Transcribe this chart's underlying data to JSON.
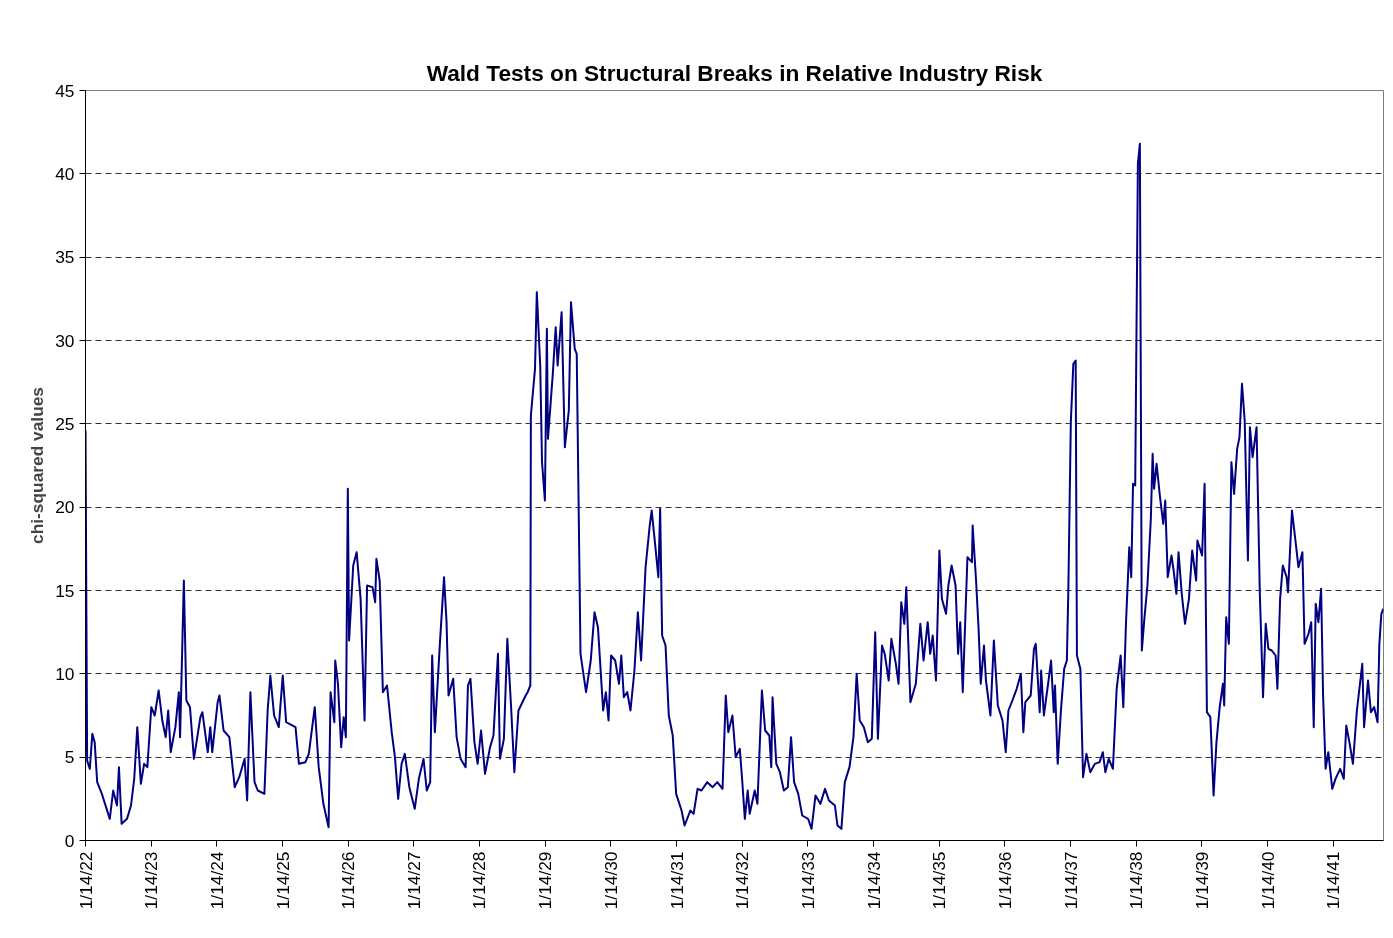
{
  "chart_data": {
    "type": "line",
    "title": "Wald Tests on Structural Breaks in Relative Industry Risk",
    "ylabel": "chi-squared values",
    "x": [
      "1922-01-14",
      "1922-01-23",
      "1922-02-07",
      "1922-02-21",
      "1922-03-06",
      "1922-03-20",
      "1922-04-15",
      "1922-05-29",
      "1922-06-17",
      "1922-07-08",
      "1922-07-19",
      "1922-08-03",
      "1922-09-02",
      "1922-09-24",
      "1922-10-12",
      "1922-10-29",
      "1922-11-18",
      "1922-12-06",
      "1922-12-24",
      "1923-01-15",
      "1923-02-03",
      "1923-02-25",
      "1923-03-17",
      "1923-04-05",
      "1923-04-19",
      "1923-05-03",
      "1923-05-29",
      "1923-06-17",
      "1923-06-24",
      "1923-07-15",
      "1923-07-29",
      "1923-08-18",
      "1923-09-09",
      "1923-10-15",
      "1923-10-26",
      "1923-11-25",
      "1923-12-09",
      "1923-12-20",
      "1924-01-19",
      "1924-01-29",
      "1924-02-21",
      "1924-03-24",
      "1924-04-23",
      "1924-05-18",
      "1924-06-17",
      "1924-07-01",
      "1924-07-19",
      "1924-08-11",
      "1924-08-29",
      "1924-10-05",
      "1924-10-23",
      "1924-11-07",
      "1924-11-28",
      "1924-12-24",
      "1925-01-15",
      "1925-02-03",
      "1925-03-27",
      "1925-04-15",
      "1925-05-21",
      "1925-06-09",
      "1925-07-12",
      "1925-08-03",
      "1925-08-29",
      "1925-09-27",
      "1925-10-08",
      "1925-10-29",
      "1925-11-03",
      "1925-11-18",
      "1925-12-06",
      "1925-12-20",
      "1926-01-01",
      "1926-01-12",
      "1926-01-19",
      "1926-02-11",
      "1926-03-02",
      "1926-03-24",
      "1926-04-15",
      "1926-04-29",
      "1926-05-29",
      "1926-06-13",
      "1926-06-20",
      "1926-07-08",
      "1926-07-26",
      "1926-08-18",
      "1926-09-13",
      "1926-10-01",
      "1926-10-19",
      "1926-11-07",
      "1926-11-25",
      "1926-12-20",
      "1927-01-19",
      "1927-02-11",
      "1927-03-09",
      "1927-03-27",
      "1927-04-15",
      "1927-04-26",
      "1927-05-11",
      "1927-06-09",
      "1927-07-01",
      "1927-07-15",
      "1927-07-26",
      "1927-08-21",
      "1927-09-09",
      "1927-10-01",
      "1927-10-29",
      "1927-11-11",
      "1927-11-25",
      "1927-12-17",
      "1928-01-04",
      "1928-01-23",
      "1928-02-14",
      "1928-03-13",
      "1928-04-01",
      "1928-04-26",
      "1928-05-07",
      "1928-05-29",
      "1928-06-17",
      "1928-07-08",
      "1928-07-26",
      "1928-08-18",
      "1928-09-27",
      "1928-10-08",
      "1928-10-23",
      "1928-10-26",
      "1928-11-18",
      "1928-11-28",
      "1928-12-17",
      "1928-12-27",
      "1929-01-12",
      "1929-01-23",
      "1929-01-29",
      "1929-02-25",
      "1929-03-13",
      "1929-03-24",
      "1929-04-15",
      "1929-05-03",
      "1929-05-25",
      "1929-06-06",
      "1929-06-27",
      "1929-07-08",
      "1929-07-29",
      "1929-08-29",
      "1929-09-24",
      "1929-10-15",
      "1929-11-03",
      "1929-12-02",
      "1929-12-17",
      "1930-01-01",
      "1930-01-15",
      "1930-02-07",
      "1930-02-28",
      "1930-03-13",
      "1930-03-27",
      "1930-04-15",
      "1930-05-03",
      "1930-05-25",
      "1930-06-13",
      "1930-07-01",
      "1930-07-26",
      "1930-08-18",
      "1930-08-29",
      "1930-09-13",
      "1930-10-05",
      "1930-10-15",
      "1930-10-26",
      "1930-11-14",
      "1930-12-02",
      "1930-12-24",
      "1931-01-12",
      "1931-02-11",
      "1931-02-28",
      "1931-04-01",
      "1931-04-19",
      "1931-05-11",
      "1931-06-02",
      "1931-07-04",
      "1931-08-03",
      "1931-08-29",
      "1931-09-27",
      "1931-10-15",
      "1931-10-29",
      "1931-11-21",
      "1931-12-09",
      "1932-01-01",
      "1932-01-15",
      "1932-01-29",
      "1932-02-14",
      "1932-02-25",
      "1932-03-24",
      "1932-04-08",
      "1932-05-03",
      "1932-05-21",
      "1932-06-13",
      "1932-06-24",
      "1932-07-01",
      "1932-07-22",
      "1932-08-11",
      "1932-09-02",
      "1932-09-24",
      "1932-10-12",
      "1932-10-29",
      "1932-11-21",
      "1932-12-13",
      "1933-01-15",
      "1933-02-03",
      "1933-02-25",
      "1933-03-24",
      "1933-04-19",
      "1933-05-11",
      "1933-06-13",
      "1933-06-27",
      "1933-07-19",
      "1933-08-07",
      "1933-09-02",
      "1933-09-24",
      "1933-10-12",
      "1933-10-29",
      "1933-11-21",
      "1933-12-13",
      "1934-01-04",
      "1934-01-23",
      "1934-02-07",
      "1934-03-02",
      "1934-03-17",
      "1934-04-08",
      "1934-04-23",
      "1934-05-18",
      "1934-06-02",
      "1934-06-17",
      "1934-07-04",
      "1934-07-15",
      "1934-08-07",
      "1934-09-06",
      "1934-10-01",
      "1934-10-19",
      "1934-11-11",
      "1934-11-25",
      "1934-12-09",
      "1934-12-27",
      "1935-01-15",
      "1935-01-29",
      "1935-02-21",
      "1935-03-06",
      "1935-03-24",
      "1935-04-15",
      "1935-04-29",
      "1935-05-11",
      "1935-05-25",
      "1935-06-20",
      "1935-07-15",
      "1935-07-19",
      "1935-08-07",
      "1935-08-21",
      "1935-09-02",
      "1935-09-20",
      "1935-10-01",
      "1935-10-26",
      "1935-11-14",
      "1935-12-06",
      "1936-01-01",
      "1936-01-19",
      "1936-02-03",
      "1936-02-25",
      "1936-03-20",
      "1936-04-12",
      "1936-04-26",
      "1936-05-07",
      "1936-06-06",
      "1936-06-24",
      "1936-07-04",
      "1936-07-26",
      "1936-08-03",
      "1936-08-18",
      "1936-09-13",
      "1936-09-27",
      "1936-10-12",
      "1936-10-19",
      "1936-11-03",
      "1936-11-21",
      "1936-12-09",
      "1936-12-24",
      "1937-01-01",
      "1937-01-15",
      "1937-01-29",
      "1937-02-11",
      "1937-02-18",
      "1937-03-09",
      "1937-03-24",
      "1937-04-12",
      "1937-05-03",
      "1937-05-29",
      "1937-06-24",
      "1937-07-12",
      "1937-07-26",
      "1937-08-14",
      "1937-09-06",
      "1937-09-27",
      "1937-10-19",
      "1937-11-03",
      "1937-11-18",
      "1937-12-06",
      "1937-12-17",
      "1937-12-27",
      "1938-01-08",
      "1938-01-23",
      "1938-02-03",
      "1938-02-14",
      "1938-02-28",
      "1938-03-17",
      "1938-04-05",
      "1938-04-15",
      "1938-04-23",
      "1938-05-07",
      "1938-05-25",
      "1938-06-13",
      "1938-06-24",
      "1938-07-08",
      "1938-07-29",
      "1938-08-11",
      "1938-08-25",
      "1938-09-06",
      "1938-09-24",
      "1938-10-12",
      "1938-11-03",
      "1938-11-21",
      "1938-12-13",
      "1938-12-20",
      "1939-01-15",
      "1939-01-29",
      "1939-02-11",
      "1939-03-02",
      "1939-03-20",
      "1939-04-05",
      "1939-04-23",
      "1939-05-11",
      "1939-05-18",
      "1939-05-29",
      "1939-06-13",
      "1939-06-27",
      "1939-07-12",
      "1939-07-29",
      "1939-08-11",
      "1939-08-25",
      "1939-09-09",
      "1939-09-27",
      "1939-10-08",
      "1939-10-23",
      "1939-11-14",
      "1939-12-02",
      "1939-12-20",
      "1940-01-04",
      "1940-01-19",
      "1940-02-07",
      "1940-02-28",
      "1940-03-09",
      "1940-03-24",
      "1940-04-08",
      "1940-04-29",
      "1940-05-07",
      "1940-05-29",
      "1940-06-13",
      "1940-07-04",
      "1940-07-26",
      "1940-08-07",
      "1940-08-29",
      "1940-09-13",
      "1940-09-27",
      "1940-10-08",
      "1940-10-23",
      "1940-11-07",
      "1940-11-18",
      "1940-12-02",
      "1940-12-17",
      "1941-01-08",
      "1941-01-26",
      "1941-02-21",
      "1941-03-13",
      "1941-03-27",
      "1941-04-15",
      "1941-05-03",
      "1941-05-25",
      "1941-06-24",
      "1941-07-04",
      "1941-07-26",
      "1941-08-11",
      "1941-08-29",
      "1941-09-17",
      "1941-09-27",
      "1941-10-08",
      "1941-10-19"
    ],
    "series": [
      {
        "color": "#000080",
        "values": [
          24.6,
          4.8,
          4.3,
          6.4,
          5.9,
          3.5,
          2.8,
          1.3,
          3.0,
          2.1,
          4.4,
          1.0,
          1.3,
          2.1,
          3.7,
          6.8,
          3.4,
          4.6,
          4.4,
          8.0,
          7.5,
          9.0,
          7.2,
          6.2,
          7.8,
          5.3,
          6.8,
          8.9,
          6.2,
          15.6,
          8.4,
          8.0,
          4.9,
          7.4,
          7.7,
          5.3,
          6.8,
          5.3,
          8.3,
          8.7,
          6.6,
          6.2,
          3.2,
          3.8,
          4.9,
          2.4,
          8.9,
          3.5,
          3.0,
          2.8,
          7.8,
          9.9,
          7.5,
          6.8,
          9.9,
          7.1,
          6.8,
          4.6,
          4.7,
          5.2,
          8.0,
          4.4,
          2.2,
          0.8,
          8.9,
          7.1,
          10.8,
          9.4,
          5.6,
          7.4,
          6.2,
          21.1,
          12.0,
          16.5,
          17.3,
          14.5,
          7.2,
          15.3,
          15.2,
          14.3,
          16.9,
          15.6,
          8.9,
          9.3,
          6.5,
          5.0,
          2.5,
          4.6,
          5.2,
          3.2,
          1.9,
          3.7,
          4.9,
          3.0,
          3.5,
          11.1,
          6.5,
          12.0,
          15.8,
          13.1,
          8.7,
          9.7,
          6.2,
          4.9,
          4.4,
          9.3,
          9.7,
          5.9,
          4.6,
          6.6,
          4.0,
          5.6,
          6.3,
          11.2,
          4.9,
          6.1,
          12.1,
          8.0,
          4.1,
          7.8,
          8.7,
          8.9,
          9.3,
          25.5,
          28.3,
          32.9,
          28.5,
          22.7,
          20.4,
          30.7,
          24.1,
          28.0,
          30.8,
          28.5,
          31.7,
          23.6,
          25.8,
          32.3,
          29.5,
          29.2,
          11.2,
          8.9,
          10.8,
          13.7,
          12.8,
          7.8,
          8.9,
          7.2,
          11.1,
          10.8,
          9.4,
          11.1,
          8.6,
          8.9,
          7.8,
          10.2,
          13.7,
          10.8,
          16.4,
          18.9,
          19.8,
          18.2,
          15.8,
          19.9,
          12.3,
          11.7,
          7.5,
          6.3,
          2.8,
          1.8,
          0.9,
          1.8,
          1.6,
          3.1,
          3.0,
          3.5,
          3.2,
          3.5,
          3.1,
          8.7,
          6.5,
          7.5,
          5.0,
          5.5,
          3.5,
          1.3,
          3.0,
          1.6,
          3.0,
          2.2,
          9.0,
          6.6,
          6.3,
          4.4,
          8.6,
          4.6,
          4.1,
          3.0,
          3.2,
          6.2,
          3.5,
          2.8,
          1.5,
          1.3,
          0.7,
          2.7,
          2.2,
          3.1,
          2.4,
          2.1,
          0.9,
          0.7,
          3.5,
          4.4,
          6.2,
          10.0,
          7.2,
          6.8,
          5.9,
          6.1,
          12.5,
          6.1,
          11.7,
          11.2,
          9.6,
          12.1,
          10.6,
          9.4,
          14.3,
          13.0,
          15.2,
          8.3,
          9.4,
          13.0,
          10.8,
          13.1,
          11.2,
          12.3,
          9.6,
          17.4,
          14.5,
          13.6,
          15.3,
          16.5,
          15.3,
          11.2,
          13.1,
          8.9,
          17.0,
          16.7,
          18.9,
          15.6,
          12.7,
          9.4,
          11.7,
          9.6,
          7.5,
          12.0,
          8.1,
          7.2,
          5.3,
          7.8,
          8.4,
          9.1,
          10.0,
          6.5,
          8.3,
          8.7,
          11.5,
          11.8,
          7.7,
          10.2,
          7.5,
          9.6,
          10.8,
          7.7,
          9.3,
          4.6,
          7.8,
          10.3,
          10.8,
          14.9,
          25.1,
          28.6,
          28.8,
          11.1,
          10.3,
          3.8,
          5.2,
          4.1,
          4.6,
          4.7,
          5.3,
          4.1,
          4.9,
          4.3,
          9.1,
          11.1,
          8.0,
          13.1,
          17.6,
          15.8,
          21.4,
          21.3,
          40.6,
          41.8,
          11.4,
          13.3,
          15.3,
          19.3,
          23.2,
          21.1,
          22.6,
          20.7,
          19.0,
          20.4,
          15.8,
          17.1,
          16.1,
          14.8,
          17.3,
          14.8,
          13.0,
          14.5,
          17.4,
          15.6,
          18.0,
          17.1,
          21.4,
          7.7,
          7.4,
          2.7,
          5.9,
          8.0,
          9.4,
          8.1,
          13.4,
          11.8,
          22.7,
          20.8,
          23.5,
          24.2,
          27.4,
          25.2,
          16.8,
          24.8,
          23.0,
          24.8,
          14.9,
          8.6,
          13.0,
          11.5,
          11.4,
          11.1,
          9.1,
          14.5,
          16.5,
          15.8,
          14.9,
          19.8,
          18.4,
          16.4,
          17.3,
          11.8,
          12.4,
          13.1,
          6.8,
          14.2,
          13.1,
          15.1,
          8.7,
          4.3,
          5.3,
          3.1,
          3.7,
          4.3,
          3.7,
          6.9,
          5.8,
          4.6,
          7.8,
          10.6,
          6.8,
          9.6,
          7.7,
          8.0,
          7.1,
          11.8,
          13.6,
          13.9
        ]
      }
    ],
    "xlim": [
      "1922-01-14",
      "1941-10-20"
    ],
    "xticks": [
      {
        "value": "1922-01-14",
        "label": "1/14/22"
      },
      {
        "value": "1923-01-14",
        "label": "1/14/23"
      },
      {
        "value": "1924-01-14",
        "label": "1/14/24"
      },
      {
        "value": "1925-01-14",
        "label": "1/14/25"
      },
      {
        "value": "1926-01-14",
        "label": "1/14/26"
      },
      {
        "value": "1927-01-14",
        "label": "1/14/27"
      },
      {
        "value": "1928-01-14",
        "label": "1/14/28"
      },
      {
        "value": "1929-01-14",
        "label": "1/14/29"
      },
      {
        "value": "1930-01-14",
        "label": "1/14/30"
      },
      {
        "value": "1931-01-14",
        "label": "1/14/31"
      },
      {
        "value": "1932-01-14",
        "label": "1/14/32"
      },
      {
        "value": "1933-01-14",
        "label": "1/14/33"
      },
      {
        "value": "1934-01-14",
        "label": "1/14/34"
      },
      {
        "value": "1935-01-14",
        "label": "1/14/35"
      },
      {
        "value": "1936-01-14",
        "label": "1/14/36"
      },
      {
        "value": "1937-01-14",
        "label": "1/14/37"
      },
      {
        "value": "1938-01-14",
        "label": "1/14/38"
      },
      {
        "value": "1939-01-14",
        "label": "1/14/39"
      },
      {
        "value": "1940-01-14",
        "label": "1/14/40"
      },
      {
        "value": "1941-01-14",
        "label": "1/14/41"
      }
    ],
    "ylim": [
      0,
      45
    ],
    "yticks": [
      0,
      5,
      10,
      15,
      20,
      25,
      30,
      35,
      40,
      45
    ],
    "grid": "y",
    "line_style": "solid",
    "marker": "none"
  }
}
